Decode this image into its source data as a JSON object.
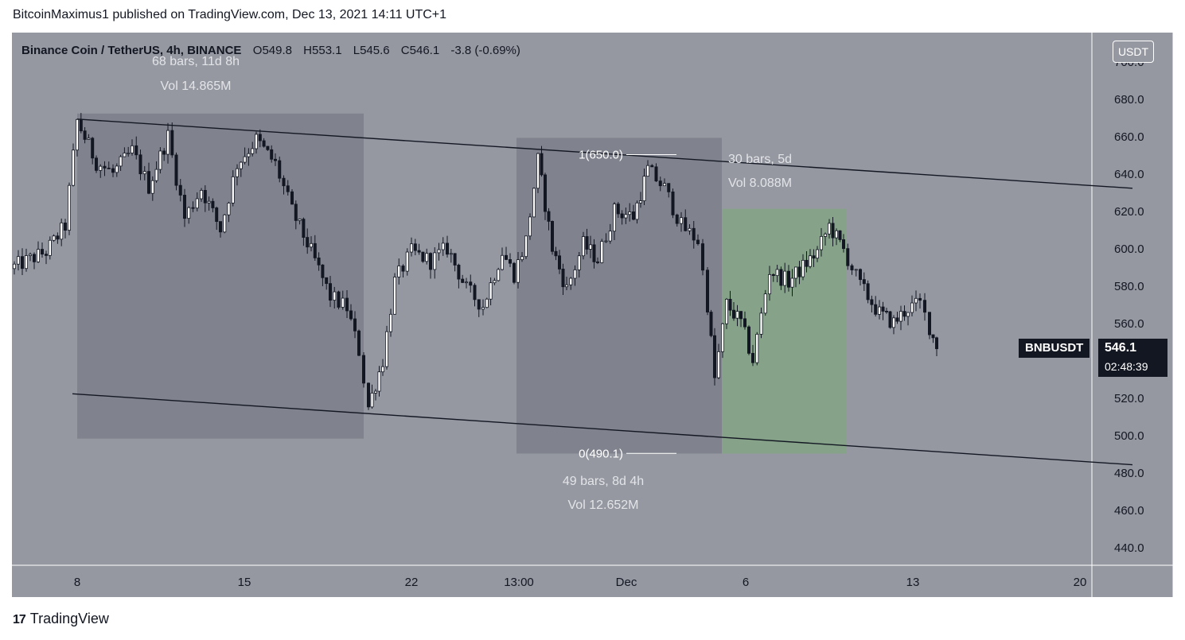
{
  "header": {
    "credit": "BitcoinMaximus1 published on TradingView.com, Dec 13, 2021 14:11 UTC+1"
  },
  "legend": {
    "symbol": "Binance Coin / TetherUS, 4h, BINANCE",
    "open_label": "O",
    "open": "549.8",
    "high_label": "H",
    "high": "553.1",
    "low_label": "L",
    "low": "545.6",
    "close_label": "C",
    "close": "546.1",
    "change": "-3.8 (-0.69%)"
  },
  "unit_badge": "USDT",
  "price_tag": {
    "ticker": "BNBUSDT",
    "price": "546.1",
    "countdown": "02:48:39"
  },
  "footer": {
    "logo_text": "TradingView",
    "logo_mark": "17"
  },
  "colors": {
    "background": "#9598a1",
    "candle": "#131722",
    "box_gray": "#80838d",
    "box_green": "#86a389",
    "text_light": "#e3e4e8"
  },
  "chart_data": {
    "type": "candlestick",
    "y_ticks": [
      "700.0",
      "680.0",
      "660.0",
      "640.0",
      "620.0",
      "600.0",
      "580.0",
      "560.0",
      "540.0",
      "520.0",
      "500.0",
      "480.0",
      "460.0",
      "440.0"
    ],
    "ylim": [
      430,
      720
    ],
    "x_ticks": [
      "8",
      "15",
      "22",
      "13:00",
      "Dec",
      "6",
      "13",
      "20"
    ],
    "x_tick_days": [
      7.8,
      14.8,
      21.8,
      26.3,
      30.8,
      35.8,
      42.8,
      49.8
    ],
    "xlim": [
      5,
      52
    ],
    "ohlc_path": [
      [
        5.0,
        589
      ],
      [
        6.5,
        598
      ],
      [
        7.3,
        612
      ],
      [
        7.8,
        668
      ],
      [
        8.6,
        646
      ],
      [
        9.3,
        640
      ],
      [
        10.1,
        652
      ],
      [
        10.8,
        633
      ],
      [
        11.6,
        660
      ],
      [
        12.3,
        616
      ],
      [
        13.0,
        632
      ],
      [
        13.8,
        610
      ],
      [
        14.5,
        645
      ],
      [
        15.3,
        658
      ],
      [
        16.1,
        645
      ],
      [
        16.8,
        620
      ],
      [
        17.6,
        598
      ],
      [
        18.4,
        574
      ],
      [
        19.1,
        568
      ],
      [
        19.6,
        545
      ],
      [
        20.0,
        515
      ],
      [
        20.6,
        540
      ],
      [
        21.1,
        582
      ],
      [
        21.8,
        598
      ],
      [
        22.6,
        593
      ],
      [
        23.3,
        600
      ],
      [
        24.1,
        578
      ],
      [
        24.8,
        569
      ],
      [
        25.6,
        598
      ],
      [
        26.1,
        586
      ],
      [
        26.6,
        604
      ],
      [
        27.1,
        647
      ],
      [
        27.7,
        600
      ],
      [
        28.3,
        578
      ],
      [
        29.0,
        602
      ],
      [
        29.6,
        594
      ],
      [
        30.3,
        620
      ],
      [
        31.1,
        617
      ],
      [
        31.7,
        642
      ],
      [
        32.4,
        632
      ],
      [
        33.1,
        612
      ],
      [
        33.8,
        604
      ],
      [
        34.2,
        570
      ],
      [
        34.5,
        530
      ],
      [
        35.0,
        570
      ],
      [
        35.6,
        560
      ],
      [
        36.1,
        540
      ],
      [
        36.8,
        588
      ],
      [
        37.6,
        582
      ],
      [
        38.2,
        590
      ],
      [
        38.8,
        598
      ],
      [
        39.3,
        612
      ],
      [
        39.9,
        599
      ],
      [
        40.6,
        580
      ],
      [
        41.4,
        565
      ],
      [
        42.0,
        560
      ],
      [
        42.6,
        568
      ],
      [
        43.1,
        570
      ],
      [
        43.5,
        558
      ],
      [
        43.8,
        546.1
      ]
    ],
    "measure_boxes": [
      {
        "x0": 7.8,
        "x1": 19.8,
        "y0": 498,
        "y1": 672,
        "color": "gray",
        "bars": "68 bars, 11d 8h",
        "vol": "Vol 14.865M"
      },
      {
        "x0": 26.2,
        "x1": 34.8,
        "y0": 490,
        "y1": 659,
        "color": "gray",
        "bars": "49 bars, 8d 4h",
        "vol": "Vol 12.652M"
      },
      {
        "x0": 34.8,
        "x1": 40.0,
        "y0": 490,
        "y1": 621,
        "color": "green",
        "bars": "30 bars, 5d",
        "vol": "Vol 8.088M"
      }
    ],
    "fib_levels": [
      {
        "label": "1(650.0)",
        "price": 650.0
      },
      {
        "label": "0(490.1)",
        "price": 490.1
      }
    ],
    "channel_lines": [
      {
        "x0": 7.8,
        "y0": 669,
        "x1": 52.0,
        "y1": 632
      },
      {
        "x0": 7.6,
        "y0": 522,
        "x1": 52.0,
        "y1": 484
      }
    ],
    "last_price": 546.1
  }
}
